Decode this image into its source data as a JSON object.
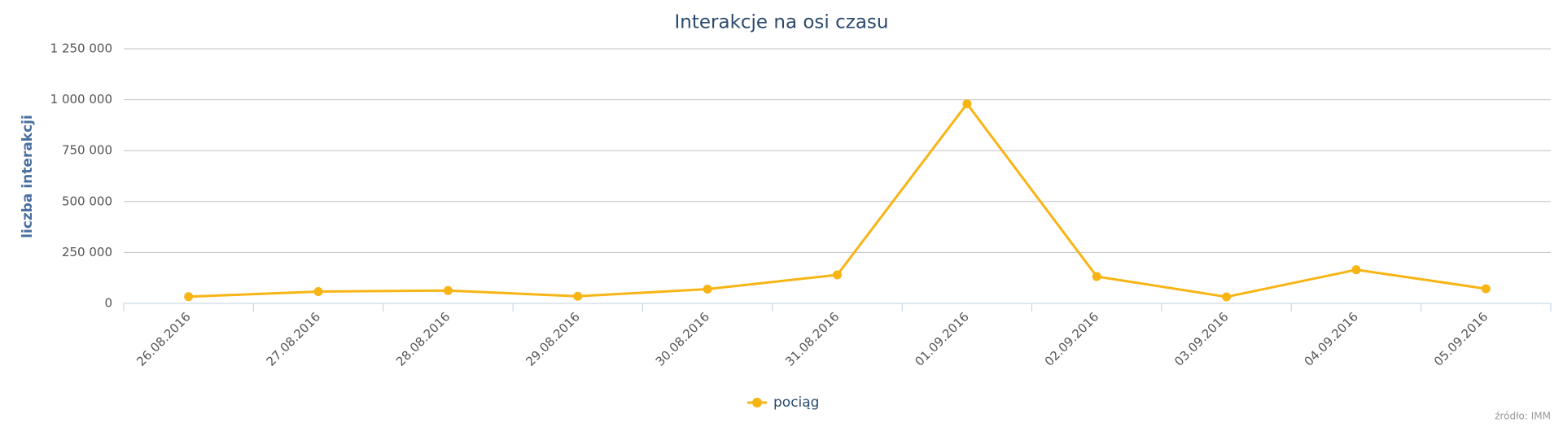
{
  "chart_data": {
    "type": "line",
    "title": "Interakcje na osi czasu",
    "y_label": "liczba interakcji",
    "categories": [
      "26.08.2016",
      "27.08.2016",
      "28.08.2016",
      "29.08.2016",
      "30.08.2016",
      "31.08.2016",
      "01.09.2016",
      "02.09.2016",
      "03.09.2016",
      "04.09.2016",
      "05.09.2016"
    ],
    "series": [
      {
        "name": "pociąg",
        "color": "#f7b515",
        "values": [
          33000,
          58000,
          63000,
          35000,
          70000,
          140000,
          980000,
          132000,
          32000,
          165000,
          72000
        ]
      }
    ],
    "ylim": [
      0,
      1250000
    ],
    "yticks": [
      0,
      {
        "value": 250000,
        "label": "250 000"
      },
      {
        "value": 500000,
        "label": "500 000"
      },
      {
        "value": 750000,
        "label": "750 000"
      },
      {
        "value": 1000000,
        "label": "1 000 000"
      },
      {
        "value": 1250000,
        "label": "1 250 000"
      }
    ],
    "grid": true,
    "legend": "bottom",
    "credit": "źródło: IMM"
  }
}
